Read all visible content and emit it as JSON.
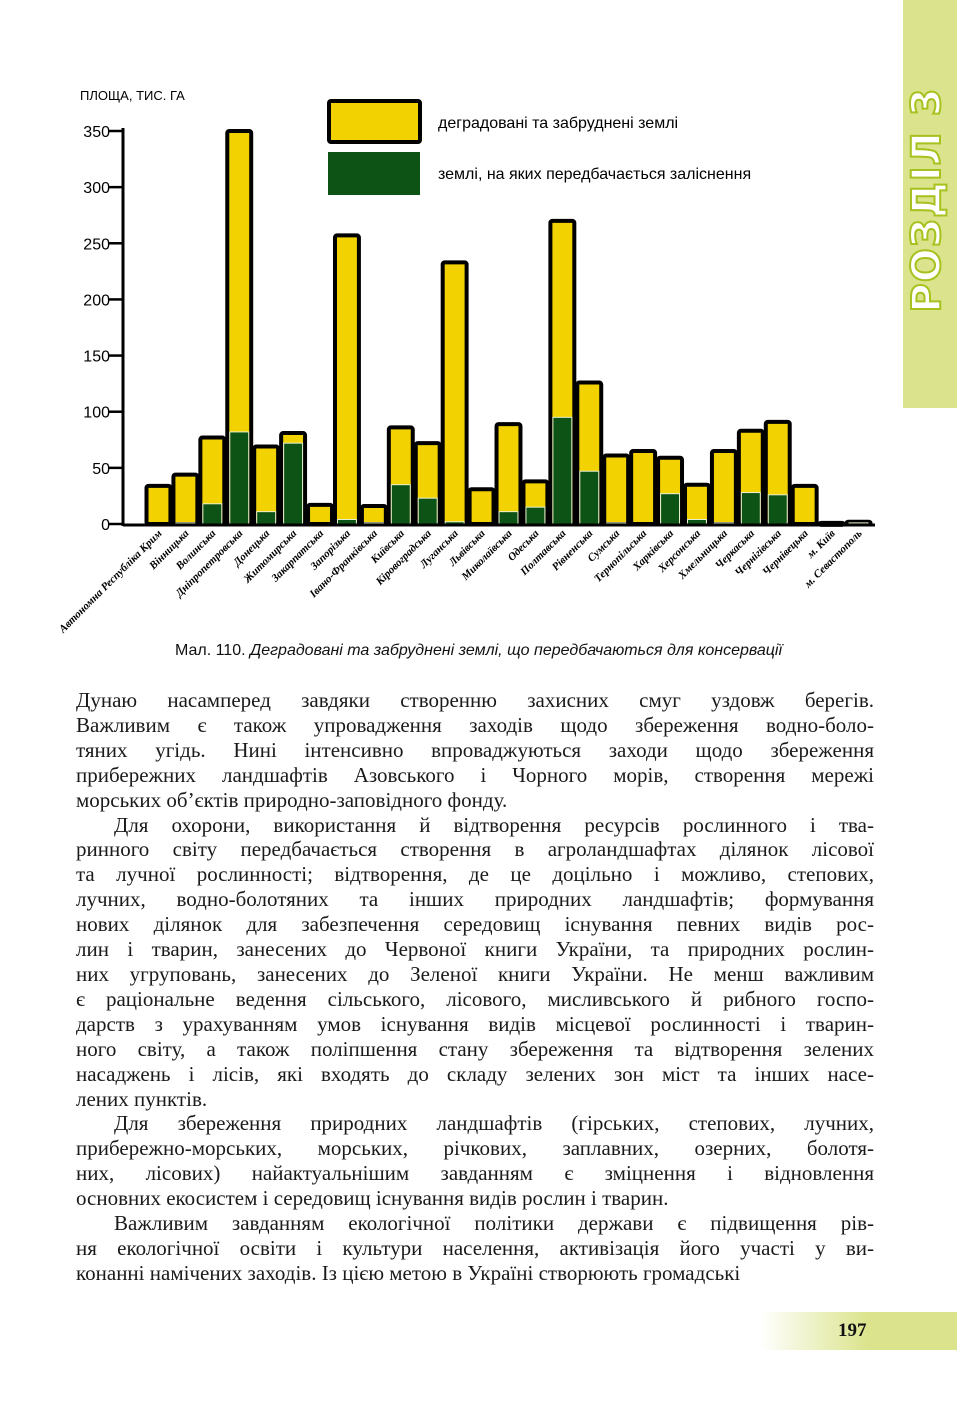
{
  "section_tab": {
    "label": "РОЗДІЛ 3",
    "color": "#dbe48c"
  },
  "chart_data": {
    "type": "bar",
    "ylabel": "ПЛОЩА, ТИС. ГА",
    "ylim": [
      0,
      350
    ],
    "yticks": [
      "0",
      "50",
      "100",
      "150",
      "200",
      "250",
      "300",
      "350"
    ],
    "grid": false,
    "legend_position": "top-right",
    "categories": [
      "Автономна Республіка Крим",
      "Вінницька",
      "Волинська",
      "Дніпропетровська",
      "Донецька",
      "Житомирська",
      "Закарпатська",
      "Запорізька",
      "Івано-Франківська",
      "Київська",
      "Кіровоградська",
      "Луганська",
      "Львівська",
      "Миколаївська",
      "Одеська",
      "Полтавська",
      "Рівненська",
      "Сумська",
      "Тернопільська",
      "Харківська",
      "Херсонська",
      "Хмельницька",
      "Черкаська",
      "Чернігівська",
      "Чернівецька",
      "м. Київ",
      "м. Севастополь"
    ],
    "series": [
      {
        "name": "деградовані та забруднені землі",
        "color": "#f2d200",
        "values": [
          34,
          44,
          77,
          350,
          69,
          81,
          17,
          257,
          16,
          86,
          72,
          233,
          31,
          89,
          38,
          270,
          126,
          61,
          65,
          59,
          35,
          65,
          83,
          91,
          34,
          1,
          2
        ]
      },
      {
        "name": "землі, на яких передбачається заліснення",
        "color": "#0d5316",
        "values": [
          0,
          1,
          18,
          82,
          11,
          72,
          0,
          4,
          1,
          35,
          23,
          2,
          0,
          11,
          15,
          95,
          47,
          1,
          0,
          27,
          4,
          1,
          28,
          26,
          0,
          0,
          1
        ]
      }
    ]
  },
  "caption": {
    "prefix": "Мал. 110. ",
    "text": "Деградовані та забруднені землі, що передбачаються для консервації"
  },
  "paragraphs": [
    {
      "indent": false,
      "lines": [
        "Дунаю насамперед завдяки створенню захисних смуг уздовж берегів.",
        "Важливим є також упровадження заходів щодо збереження водно-боло-",
        "тяних угідь. Нині інтенсивно впроваджуються заходи щодо збереження",
        "прибережних ландшафтів Азовського і Чорного морів, створення мережі",
        "морських об’єктів природно-заповідного фонду."
      ]
    },
    {
      "indent": true,
      "lines": [
        "Для охорони, використання й відтворення ресурсів рослинного і тва-",
        "ринного світу передбачається створення в агроландшафтах ділянок лісової",
        "та лучної рослинності; відтворення, де це доцільно і можливо, степових,",
        "лучних, водно-болотяних та інших природних ландшафтів; формування",
        "нових ділянок для забезпечення середовищ існування певних видів рос-",
        "лин і тварин, занесених до Червоної книги України, та природних рослин-",
        "них угруповань, занесених до Зеленої книги України. Не менш важливим",
        "є раціональне ведення сільського, лісового, мисливського й рибного госпо-",
        "дарств з урахуванням умов існування видів місцевої рослинності і тварин-",
        "ного світу, а також поліпшення стану збереження та відтворення зелених",
        "насаджень і лісів, які входять до складу зелених зон міст та інших насе-",
        "лених пунктів."
      ]
    },
    {
      "indent": true,
      "lines": [
        "Для збереження природних ландшафтів (гірських, степових, лучних,",
        "прибережно-морських, морських, річкових, заплавних, озерних, болотя-",
        "них, лісових) найактуальнішим завданням є зміцнення і відновлення",
        "основних екосистем і середовищ існування видів рослин і тварин."
      ]
    },
    {
      "indent": true,
      "lines": [
        "Важливим завданням екологічної політики держави є підвищення рів-",
        "ня екологічної освіти і культури населення, активізація його участі у ви-",
        "конанні намічених заходів. Із цією метою в Україні створюють громадські"
      ]
    }
  ],
  "page_number": "197"
}
